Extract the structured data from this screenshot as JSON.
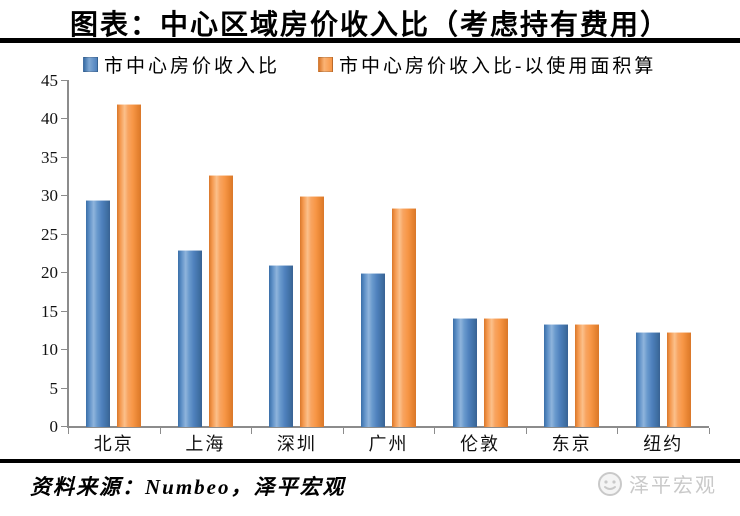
{
  "title": "图表：中心区域房价收入比（考虑持有费用）",
  "footer": {
    "source": "资料来源：Numbeo，泽平宏观",
    "watermark": "泽平宏观"
  },
  "icons": {
    "watermark_logo": "zeping-macro-face-logo"
  },
  "colors": {
    "series_blue": "#4f81bd",
    "series_orange": "#f79646",
    "axis": "#8c8c8c",
    "divider": "#000000",
    "watermark": "#c9c9c9"
  },
  "chart_data": {
    "type": "bar",
    "title": "图表：中心区域房价收入比（考虑持有费用）",
    "categories": [
      "北京",
      "上海",
      "深圳",
      "广州",
      "伦敦",
      "东京",
      "纽约"
    ],
    "series": [
      {
        "name": "市中心房价收入比",
        "color": "#4f81bd",
        "values": [
          29.4,
          22.9,
          21.0,
          19.9,
          14.0,
          13.3,
          12.2
        ]
      },
      {
        "name": "市中心房价收入比-以使用面积算",
        "color": "#f79646",
        "values": [
          41.9,
          32.7,
          29.9,
          28.3,
          14.0,
          13.3,
          12.2
        ]
      }
    ],
    "xlabel": "",
    "ylabel": "",
    "ylim": [
      0,
      45
    ],
    "yticks": [
      0,
      5,
      10,
      15,
      20,
      25,
      30,
      35,
      40,
      45
    ],
    "grid": false,
    "legend_position": "top"
  }
}
